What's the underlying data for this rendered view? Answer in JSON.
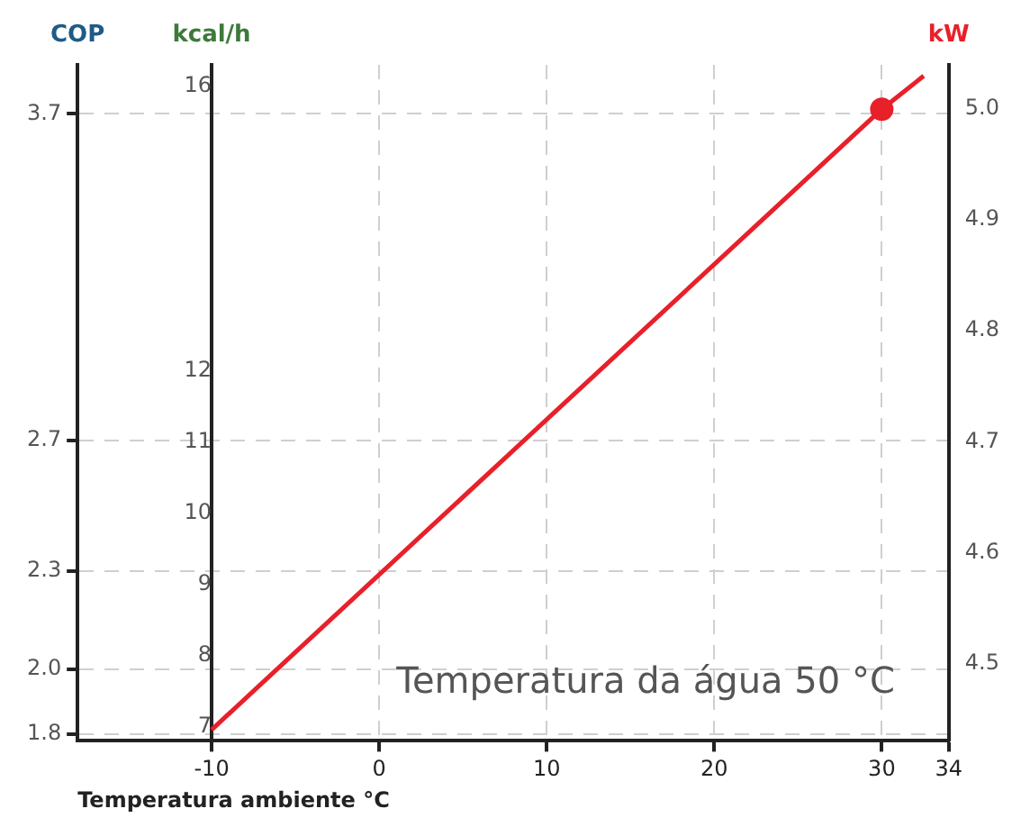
{
  "chart_data": {
    "type": "line",
    "xlabel": "Temperatura ambiente °C",
    "ylabel": "kcal/h",
    "y2label": "kW",
    "y3label": "COP",
    "annotations": [
      "Temperatura da água 50 °C"
    ],
    "xlim": [
      -18,
      34
    ],
    "xticks": [
      -10,
      0,
      10,
      20,
      30,
      34
    ],
    "ylim": [
      6.8,
      16.3
    ],
    "yticks": [
      7,
      8,
      9,
      10,
      11,
      12,
      16
    ],
    "y2lim": [
      4.43,
      5.04
    ],
    "y2ticks": [
      4.5,
      4.6,
      4.7,
      4.8,
      4.9,
      {
        "value": 5,
        "label": "5.0"
      }
    ],
    "y3lim": [
      1.78,
      3.85
    ],
    "y3ticks": [
      1.8,
      {
        "value": 2,
        "label": "2.0"
      },
      2.3,
      2.7,
      3.7
    ],
    "grid": true,
    "legend": false,
    "series": [
      {
        "axis": "y2",
        "color": "#e8202a",
        "x": [
          -10,
          30,
          32.5
        ],
        "values": [
          4.44,
          5.0,
          5.03
        ],
        "marker": "none"
      },
      {
        "type": "scatter",
        "axis": "y2",
        "color": "#e8202a",
        "x": [
          30
        ],
        "values": [
          5.0
        ],
        "marker": "circle"
      }
    ]
  }
}
